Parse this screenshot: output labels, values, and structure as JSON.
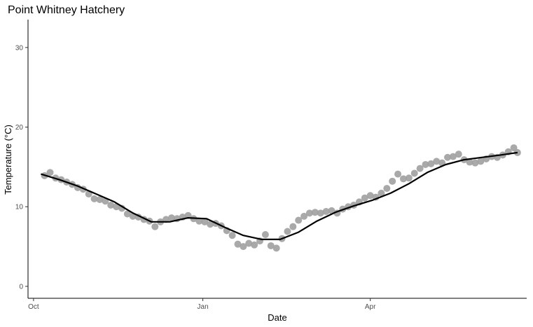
{
  "chart_data": {
    "type": "scatter",
    "title": "Point Whitney Hatchery",
    "xlabel": "Date",
    "ylabel": "Temperature (°C)",
    "x_is_date": true,
    "xlim": [
      "2019-09-28",
      "2020-06-25"
    ],
    "ylim": [
      -1.5,
      33.5
    ],
    "x_ticks": [
      {
        "value": "2019-10-01",
        "label": "Oct"
      },
      {
        "value": "2020-01-01",
        "label": "Jan"
      },
      {
        "value": "2020-04-01",
        "label": "Apr"
      }
    ],
    "y_ticks": [
      0,
      10,
      20,
      30
    ],
    "grid": false,
    "legend": "none",
    "point_color": "#a0a0a0",
    "trend_color": "#000000",
    "series": [
      {
        "kind": "points",
        "x": [
          "2019-10-07",
          "2019-10-10",
          "2019-10-13",
          "2019-10-16",
          "2019-10-19",
          "2019-10-22",
          "2019-10-25",
          "2019-10-28",
          "2019-10-31",
          "2019-11-03",
          "2019-11-06",
          "2019-11-09",
          "2019-11-12",
          "2019-11-15",
          "2019-11-18",
          "2019-11-21",
          "2019-11-24",
          "2019-11-27",
          "2019-11-30",
          "2019-12-03",
          "2019-12-06",
          "2019-12-09",
          "2019-12-12",
          "2019-12-15",
          "2019-12-18",
          "2019-12-21",
          "2019-12-24",
          "2019-12-27",
          "2019-12-30",
          "2020-01-02",
          "2020-01-05",
          "2020-01-08",
          "2020-01-11",
          "2020-01-14",
          "2020-01-17",
          "2020-01-20",
          "2020-01-23",
          "2020-01-26",
          "2020-01-29",
          "2020-02-01",
          "2020-02-04",
          "2020-02-07",
          "2020-02-10",
          "2020-02-13",
          "2020-02-16",
          "2020-02-19",
          "2020-02-22",
          "2020-02-25",
          "2020-02-28",
          "2020-03-02",
          "2020-03-05",
          "2020-03-08",
          "2020-03-11",
          "2020-03-14",
          "2020-03-17",
          "2020-03-20",
          "2020-03-23",
          "2020-03-26",
          "2020-03-29",
          "2020-04-01",
          "2020-04-04",
          "2020-04-07",
          "2020-04-10",
          "2020-04-13",
          "2020-04-16",
          "2020-04-19",
          "2020-04-22",
          "2020-04-25",
          "2020-04-28",
          "2020-05-01",
          "2020-05-04",
          "2020-05-07",
          "2020-05-10",
          "2020-05-13",
          "2020-05-16",
          "2020-05-19",
          "2020-05-22",
          "2020-05-25",
          "2020-05-28",
          "2020-05-31",
          "2020-06-03",
          "2020-06-06",
          "2020-06-09",
          "2020-06-12",
          "2020-06-15",
          "2020-06-18",
          "2020-06-20"
        ],
        "y": [
          13.9,
          14.3,
          13.6,
          13.4,
          13.1,
          12.8,
          12.4,
          12.2,
          11.6,
          11.0,
          10.9,
          10.7,
          10.2,
          10.0,
          9.8,
          9.1,
          8.8,
          8.7,
          8.4,
          8.2,
          7.5,
          8.1,
          8.4,
          8.6,
          8.5,
          8.7,
          8.9,
          8.5,
          8.2,
          8.1,
          7.8,
          7.9,
          7.6,
          7.0,
          6.4,
          5.3,
          5.0,
          5.4,
          5.2,
          5.7,
          6.5,
          5.1,
          4.8,
          6.0,
          6.9,
          7.5,
          8.3,
          8.8,
          9.2,
          9.3,
          9.2,
          9.4,
          9.5,
          9.2,
          9.7,
          10.0,
          10.2,
          10.6,
          11.1,
          11.4,
          11.2,
          11.7,
          12.3,
          13.2,
          14.1,
          13.5,
          13.6,
          14.2,
          14.8,
          15.3,
          15.4,
          15.7,
          15.5,
          16.2,
          16.3,
          16.6,
          15.9,
          15.6,
          15.5,
          15.7,
          16.0,
          16.3,
          16.2,
          16.5,
          16.9,
          17.4,
          16.8
        ]
      },
      {
        "kind": "line",
        "x": [
          "2019-10-05",
          "2019-10-15",
          "2019-10-25",
          "2019-11-04",
          "2019-11-14",
          "2019-11-24",
          "2019-12-04",
          "2019-12-14",
          "2019-12-24",
          "2020-01-03",
          "2020-01-13",
          "2020-01-23",
          "2020-02-02",
          "2020-02-12",
          "2020-02-22",
          "2020-03-03",
          "2020-03-13",
          "2020-03-23",
          "2020-04-02",
          "2020-04-12",
          "2020-04-22",
          "2020-05-02",
          "2020-05-12",
          "2020-05-22",
          "2020-06-01",
          "2020-06-11",
          "2020-06-20"
        ],
        "y": [
          14.1,
          13.4,
          12.6,
          11.6,
          10.6,
          9.2,
          8.1,
          8.1,
          8.6,
          8.5,
          7.4,
          6.4,
          5.9,
          5.9,
          6.8,
          8.2,
          9.3,
          10.1,
          10.8,
          11.7,
          12.9,
          14.3,
          15.3,
          15.9,
          16.2,
          16.5,
          16.8
        ]
      }
    ]
  }
}
